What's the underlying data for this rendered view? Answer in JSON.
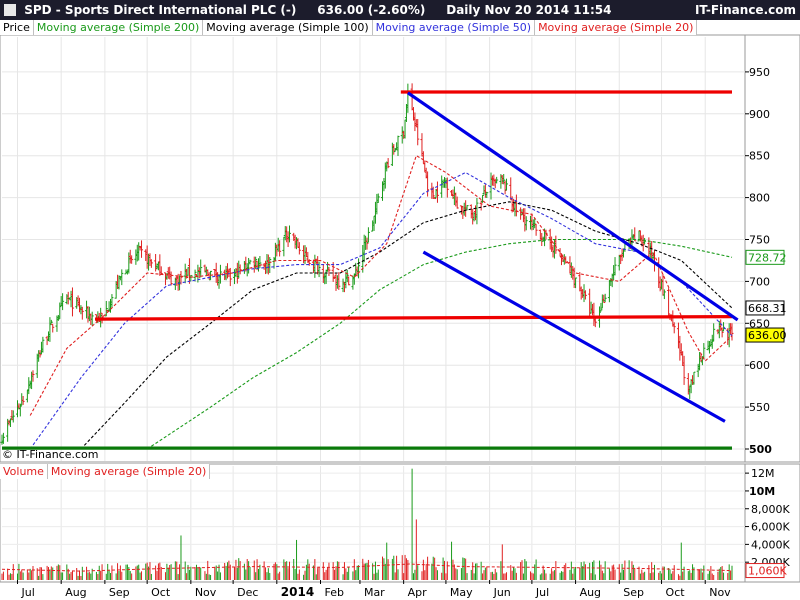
{
  "header": {
    "title": "SPD - Sports Direct International PLC (-)",
    "last_change": "636.00 (-2.60%)",
    "period": "Daily  Nov 20 2014 11:54",
    "brand": "IT-Finance.com"
  },
  "legend": {
    "price": "Price",
    "ma200": "Moving average (Simple 200)",
    "ma100": "Moving average (Simple 100)",
    "ma50": "Moving average (Simple 50)",
    "ma20": "Moving average (Simple 20)",
    "volume": "Volume",
    "vol_ma20": "Moving average (Simple 20)"
  },
  "copyright": "© IT-Finance.com",
  "colors": {
    "up": "#1a9a1a",
    "down": "#e02020",
    "ma200": "#1a9a1a",
    "ma100": "#000000",
    "ma50": "#3333dd",
    "ma20": "#e02020",
    "trend_blue": "#0000e6",
    "trend_red": "#ee0000",
    "trend_green": "#0a7a0a",
    "title_bg": "#1c1c2c"
  },
  "chart_data": {
    "type": "line",
    "price_axis": {
      "ticks": [
        500,
        550,
        600,
        650,
        700,
        750,
        800,
        850,
        900,
        950
      ],
      "labels": [
        "500",
        "550",
        "600",
        "650",
        "700",
        "750",
        "800",
        "850",
        "900",
        "950"
      ]
    },
    "price_last_labels": [
      {
        "label": "728.72",
        "value": 728.72,
        "series": "ma200"
      },
      {
        "label": "668.31",
        "value": 668.31,
        "series": "ma100"
      },
      {
        "label": "636.00",
        "value": 636.0,
        "series": "price"
      }
    ],
    "volume_axis": {
      "ticks": [
        0,
        2000000,
        4000000,
        6000000,
        8000000,
        10000000,
        12000000
      ],
      "labels": [
        "",
        "2,000K",
        "4,000K",
        "6,000K",
        "8,000K",
        "10M",
        "12M"
      ]
    },
    "volume_last_label": {
      "label": "1,060K",
      "value": 1060000
    },
    "x_axis": {
      "labels": [
        "Jul",
        "Aug",
        "Sep",
        "Oct",
        "Nov",
        "Dec",
        "2014",
        "Feb",
        "Mar",
        "Apr",
        "May",
        "Jun",
        "Jul",
        "Aug",
        "Sep",
        "Oct",
        "Nov"
      ],
      "dates": [
        "2013-07-01",
        "2013-08-01",
        "2013-09-01",
        "2013-10-01",
        "2013-11-01",
        "2013-12-01",
        "2014-01-01",
        "2014-02-01",
        "2014-03-01",
        "2014-04-01",
        "2014-05-01",
        "2014-06-01",
        "2014-07-01",
        "2014-08-01",
        "2014-09-01",
        "2014-10-01",
        "2014-11-01"
      ],
      "start": "2013-06-20",
      "end": "2014-11-20",
      "bold_label": "2014"
    },
    "price_points": [
      [
        "2013-06-20",
        515
      ],
      [
        "2013-07-05",
        560
      ],
      [
        "2013-07-20",
        630
      ],
      [
        "2013-08-05",
        680
      ],
      [
        "2013-08-20",
        660
      ],
      [
        "2013-08-30",
        655
      ],
      [
        "2013-09-15",
        715
      ],
      [
        "2013-09-25",
        735
      ],
      [
        "2013-10-10",
        715
      ],
      [
        "2013-10-20",
        700
      ],
      [
        "2013-10-30",
        710
      ],
      [
        "2013-11-15",
        710
      ],
      [
        "2013-11-30",
        705
      ],
      [
        "2013-12-15",
        725
      ],
      [
        "2013-12-25",
        720
      ],
      [
        "2014-01-10",
        760
      ],
      [
        "2014-01-20",
        730
      ],
      [
        "2014-02-05",
        710
      ],
      [
        "2014-02-15",
        700
      ],
      [
        "2014-02-25",
        705
      ],
      [
        "2014-03-10",
        770
      ],
      [
        "2014-03-20",
        840
      ],
      [
        "2014-04-01",
        880
      ],
      [
        "2014-04-04",
        925
      ],
      [
        "2014-04-10",
        880
      ],
      [
        "2014-04-20",
        800
      ],
      [
        "2014-05-01",
        820
      ],
      [
        "2014-05-10",
        790
      ],
      [
        "2014-05-20",
        780
      ],
      [
        "2014-06-01",
        815
      ],
      [
        "2014-06-10",
        820
      ],
      [
        "2014-06-20",
        785
      ],
      [
        "2014-07-01",
        765
      ],
      [
        "2014-07-15",
        745
      ],
      [
        "2014-07-25",
        720
      ],
      [
        "2014-08-05",
        690
      ],
      [
        "2014-08-15",
        650
      ],
      [
        "2014-08-25",
        700
      ],
      [
        "2014-09-05",
        740
      ],
      [
        "2014-09-15",
        755
      ],
      [
        "2014-09-25",
        730
      ],
      [
        "2014-10-05",
        670
      ],
      [
        "2014-10-15",
        610
      ],
      [
        "2014-10-20",
        565
      ],
      [
        "2014-10-30",
        615
      ],
      [
        "2014-11-10",
        645
      ],
      [
        "2014-11-20",
        636
      ]
    ],
    "ma20_points": [
      [
        "2013-07-10",
        540
      ],
      [
        "2013-08-05",
        620
      ],
      [
        "2013-09-01",
        660
      ],
      [
        "2013-10-01",
        710
      ],
      [
        "2013-11-01",
        705
      ],
      [
        "2013-12-01",
        710
      ],
      [
        "2014-01-01",
        725
      ],
      [
        "2014-02-01",
        725
      ],
      [
        "2014-02-25",
        705
      ],
      [
        "2014-03-20",
        745
      ],
      [
        "2014-04-10",
        850
      ],
      [
        "2014-05-01",
        830
      ],
      [
        "2014-06-01",
        790
      ],
      [
        "2014-07-01",
        780
      ],
      [
        "2014-08-01",
        710
      ],
      [
        "2014-09-01",
        700
      ],
      [
        "2014-09-25",
        735
      ],
      [
        "2014-10-20",
        640
      ],
      [
        "2014-11-01",
        605
      ],
      [
        "2014-11-20",
        635
      ]
    ],
    "ma50_points": [
      [
        "2013-07-10",
        500
      ],
      [
        "2013-08-15",
        585
      ],
      [
        "2013-09-15",
        650
      ],
      [
        "2013-10-15",
        695
      ],
      [
        "2013-11-15",
        705
      ],
      [
        "2013-12-15",
        715
      ],
      [
        "2014-01-15",
        720
      ],
      [
        "2014-02-15",
        720
      ],
      [
        "2014-03-15",
        740
      ],
      [
        "2014-04-15",
        805
      ],
      [
        "2014-05-15",
        830
      ],
      [
        "2014-06-15",
        800
      ],
      [
        "2014-07-15",
        775
      ],
      [
        "2014-08-15",
        745
      ],
      [
        "2014-09-15",
        735
      ],
      [
        "2014-10-15",
        700
      ],
      [
        "2014-11-20",
        635
      ]
    ],
    "ma100_points": [
      [
        "2013-08-15",
        500
      ],
      [
        "2013-09-15",
        555
      ],
      [
        "2013-10-15",
        610
      ],
      [
        "2013-11-15",
        650
      ],
      [
        "2013-12-15",
        690
      ],
      [
        "2014-01-15",
        710
      ],
      [
        "2014-02-15",
        710
      ],
      [
        "2014-03-15",
        735
      ],
      [
        "2014-04-15",
        770
      ],
      [
        "2014-05-15",
        785
      ],
      [
        "2014-06-15",
        795
      ],
      [
        "2014-07-15",
        785
      ],
      [
        "2014-08-15",
        760
      ],
      [
        "2014-09-15",
        745
      ],
      [
        "2014-10-15",
        725
      ],
      [
        "2014-11-20",
        668.31
      ]
    ],
    "ma200_points": [
      [
        "2013-10-01",
        500
      ],
      [
        "2013-11-15",
        550
      ],
      [
        "2013-12-15",
        585
      ],
      [
        "2014-01-15",
        615
      ],
      [
        "2014-02-15",
        650
      ],
      [
        "2014-03-15",
        690
      ],
      [
        "2014-04-15",
        720
      ],
      [
        "2014-05-15",
        735
      ],
      [
        "2014-06-15",
        745
      ],
      [
        "2014-07-15",
        750
      ],
      [
        "2014-08-15",
        750
      ],
      [
        "2014-09-15",
        750
      ],
      [
        "2014-10-15",
        742
      ],
      [
        "2014-11-20",
        728.72
      ]
    ],
    "trendlines": [
      {
        "name": "top-resistance",
        "color": "trend_red",
        "p1": [
          "2014-03-30",
          926
        ],
        "p2": [
          "2014-11-20",
          926
        ]
      },
      {
        "name": "mid-support",
        "color": "trend_red",
        "p1": [
          "2013-08-25",
          655
        ],
        "p2": [
          "2014-11-20",
          658
        ]
      },
      {
        "name": "base-support",
        "color": "trend_green",
        "p1": [
          "2013-06-20",
          501
        ],
        "p2": [
          "2014-11-20",
          501
        ]
      },
      {
        "name": "channel-upper",
        "color": "trend_blue",
        "p1": [
          "2014-04-04",
          925
        ],
        "p2": [
          "2014-11-24",
          654
        ]
      },
      {
        "name": "channel-lower",
        "color": "trend_blue",
        "p1": [
          "2014-04-15",
          735
        ],
        "p2": [
          "2014-11-15",
          533
        ]
      }
    ],
    "volume_points": [
      [
        "2013-06-20",
        1200000
      ],
      [
        "2013-08-15",
        1000000
      ],
      [
        "2013-10-15",
        1300000
      ],
      [
        "2013-12-15",
        1500000
      ],
      [
        "2014-02-15",
        1400000
      ],
      [
        "2014-04-05",
        1800000
      ],
      [
        "2014-05-15",
        1500000
      ],
      [
        "2014-07-15",
        1400000
      ],
      [
        "2014-09-15",
        1300000
      ],
      [
        "2014-11-20",
        1060000
      ]
    ],
    "volume_spikes": [
      [
        "2013-10-25",
        5000000
      ],
      [
        "2014-01-15",
        4500000
      ],
      [
        "2014-03-20",
        4200000
      ],
      [
        "2014-04-07",
        12500000
      ],
      [
        "2014-04-10",
        6800000
      ],
      [
        "2014-05-05",
        4300000
      ],
      [
        "2014-06-10",
        4000000
      ],
      [
        "2014-09-20",
        3800000
      ],
      [
        "2014-10-15",
        4200000
      ]
    ]
  }
}
